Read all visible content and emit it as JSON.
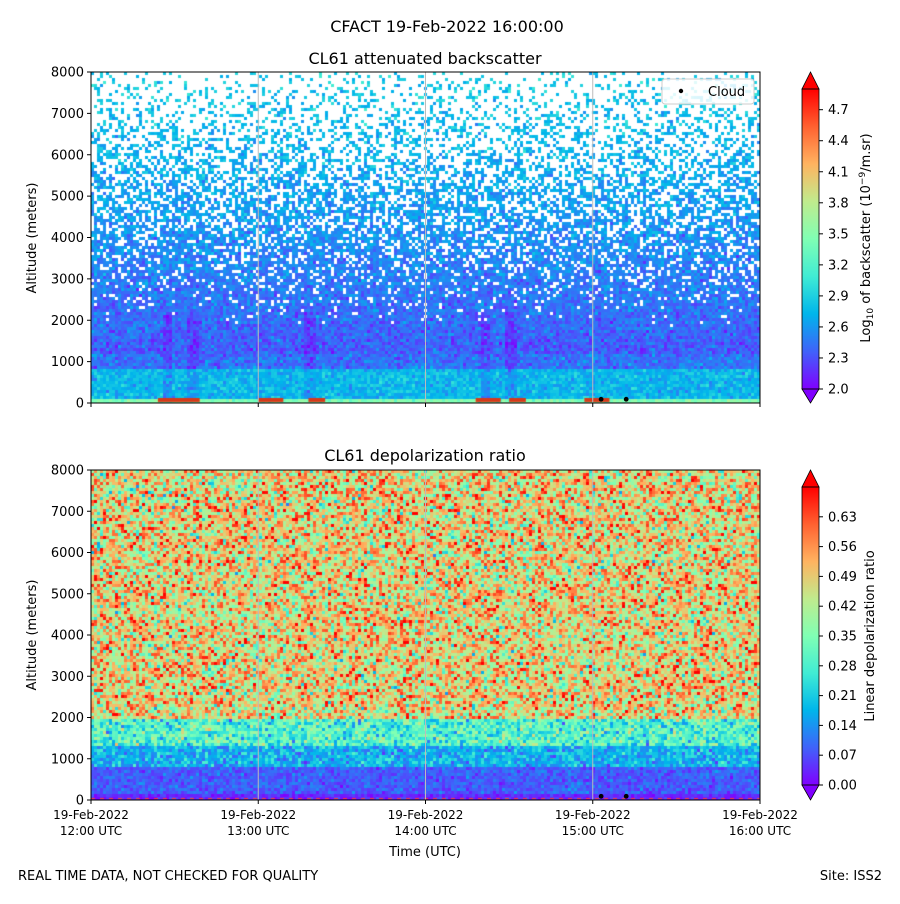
{
  "figure": {
    "suptitle": "CFACT 19-Feb-2022 16:00:00",
    "footer_left": "REAL TIME DATA, NOT CHECKED FOR QUALITY",
    "footer_right": "Site: ISS2"
  },
  "chart_data": [
    {
      "type": "heatmap",
      "title": "CL61 attenuated backscatter",
      "ylabel": "Altitude (meters)",
      "xlabel": "",
      "ylim": [
        0,
        8000
      ],
      "yticks": [
        0,
        1000,
        2000,
        3000,
        4000,
        5000,
        6000,
        7000,
        8000
      ],
      "xlim_hours_utc": [
        12.0,
        16.0
      ],
      "xticks_hours_utc": [
        12,
        13,
        14,
        15,
        16
      ],
      "xtick_labels_shown": false,
      "grid": "vertical lines at hourly ticks",
      "legend": {
        "placement": "top-right",
        "entries": [
          {
            "label": "Cloud",
            "marker": "black dot"
          }
        ]
      },
      "colorbar": {
        "label": "Log10 of backscatter (10^-9/m.sr)",
        "label_base": "Log",
        "label_sub": "10",
        "label_mid": " of backscatter (10",
        "label_sup": "−9",
        "label_end": "/m.sr)",
        "colormap": "rainbow",
        "range": [
          2.0,
          4.9
        ],
        "ticks": [
          "2.0",
          "2.3",
          "2.6",
          "2.9",
          "3.2",
          "3.5",
          "3.8",
          "4.1",
          "4.4",
          "4.7"
        ],
        "extend": "both"
      },
      "cloud_base_points": [
        {
          "time_utc": "15:03",
          "altitude_m": 90
        },
        {
          "time_utc": "15:12",
          "altitude_m": 90
        }
      ],
      "near_surface_high_backscatter_hours": [
        [
          12.4,
          12.65
        ],
        [
          13.0,
          13.15
        ],
        [
          13.3,
          13.4
        ],
        [
          14.3,
          14.45
        ],
        [
          14.5,
          14.6
        ],
        [
          14.95,
          15.1
        ]
      ],
      "low_backscatter_columns_hours": [
        12.45,
        12.6,
        13.3,
        14.35,
        14.5
      ]
    },
    {
      "type": "heatmap",
      "title": "CL61 depolarization ratio",
      "ylabel": "Altitude (meters)",
      "xlabel": "Time (UTC)",
      "ylim": [
        0,
        8000
      ],
      "yticks": [
        0,
        1000,
        2000,
        3000,
        4000,
        5000,
        6000,
        7000,
        8000
      ],
      "xlim_hours_utc": [
        12.0,
        16.0
      ],
      "xticks_hours_utc": [
        12,
        13,
        14,
        15,
        16
      ],
      "xtick_labels": [
        [
          "19-Feb-2022",
          "12:00 UTC"
        ],
        [
          "19-Feb-2022",
          "13:00 UTC"
        ],
        [
          "19-Feb-2022",
          "14:00 UTC"
        ],
        [
          "19-Feb-2022",
          "15:00 UTC"
        ],
        [
          "19-Feb-2022",
          "16:00 UTC"
        ]
      ],
      "grid": "vertical lines at hourly ticks",
      "colorbar": {
        "label": "Linear depolarization ratio",
        "colormap": "rainbow",
        "range": [
          0.0,
          0.7
        ],
        "ticks": [
          "0.00",
          "0.07",
          "0.14",
          "0.21",
          "0.28",
          "0.35",
          "0.42",
          "0.49",
          "0.56",
          "0.63"
        ],
        "extend": "both"
      },
      "cloud_base_points": [
        {
          "time_utc": "15:03",
          "altitude_m": 90
        },
        {
          "time_utc": "15:12",
          "altitude_m": 90
        }
      ]
    }
  ]
}
